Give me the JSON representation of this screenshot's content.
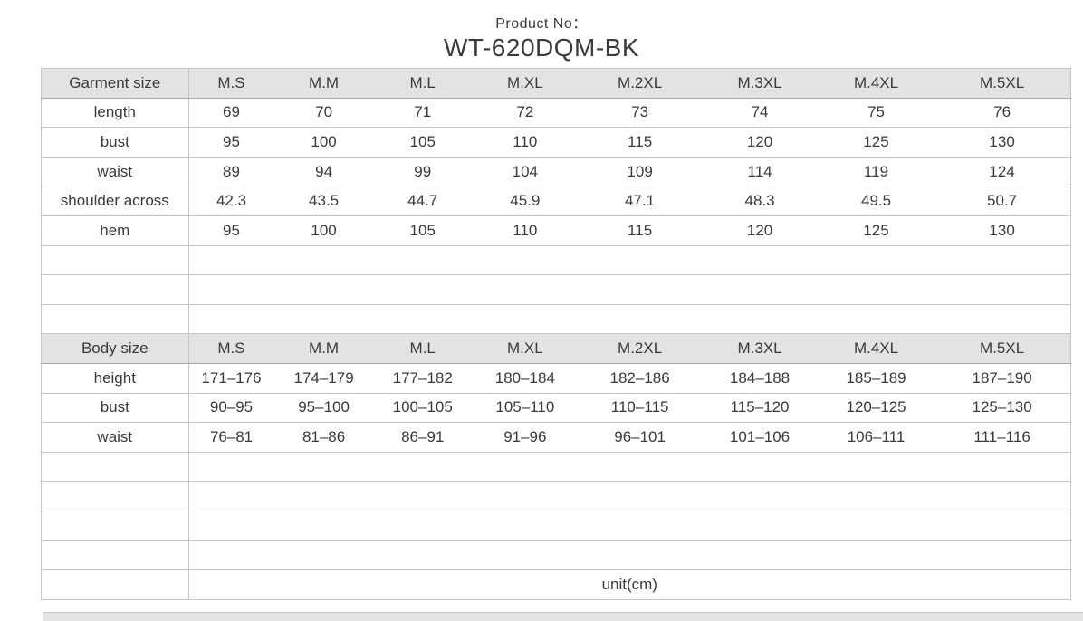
{
  "header": {
    "product_no_label": "Product No：",
    "product_no": "WT-620DQM-BK"
  },
  "unit_label": "unit(cm)",
  "size_columns": [
    "M.S",
    "M.M",
    "M.L",
    "M.XL",
    "M.2XL",
    "M.3XL",
    "M.4XL",
    "M.5XL"
  ],
  "garment": {
    "header": "Garment size",
    "rows": [
      {
        "label": "length",
        "values": [
          "69",
          "70",
          "71",
          "72",
          "73",
          "74",
          "75",
          "76"
        ]
      },
      {
        "label": "bust",
        "values": [
          "95",
          "100",
          "105",
          "110",
          "115",
          "120",
          "125",
          "130"
        ]
      },
      {
        "label": "waist",
        "values": [
          "89",
          "94",
          "99",
          "104",
          "109",
          "114",
          "119",
          "124"
        ]
      },
      {
        "label": "shoulder across",
        "values": [
          "42.3",
          "43.5",
          "44.7",
          "45.9",
          "47.1",
          "48.3",
          "49.5",
          "50.7"
        ]
      },
      {
        "label": "hem",
        "values": [
          "95",
          "100",
          "105",
          "110",
          "115",
          "120",
          "125",
          "130"
        ]
      }
    ],
    "empty_rows": 3
  },
  "body": {
    "header": "Body size",
    "rows": [
      {
        "label": "height",
        "values": [
          "171–176",
          "174–179",
          "177–182",
          "180–184",
          "182–186",
          "184–188",
          "185–189",
          "187–190"
        ]
      },
      {
        "label": "bust",
        "values": [
          "90–95",
          "95–100",
          "100–105",
          "105–110",
          "110–115",
          "115–120",
          "120–125",
          "125–130"
        ]
      },
      {
        "label": "waist",
        "values": [
          "76–81",
          "81–86",
          "86–91",
          "91–96",
          "96–101",
          "101–106",
          "106–111",
          "111–116"
        ]
      }
    ],
    "empty_rows": 4
  },
  "colors": {
    "header_bg": "#e3e3e3",
    "border": "#c6c6c6",
    "header_border": "#a9a9a9",
    "text": "#3a3a3a"
  }
}
